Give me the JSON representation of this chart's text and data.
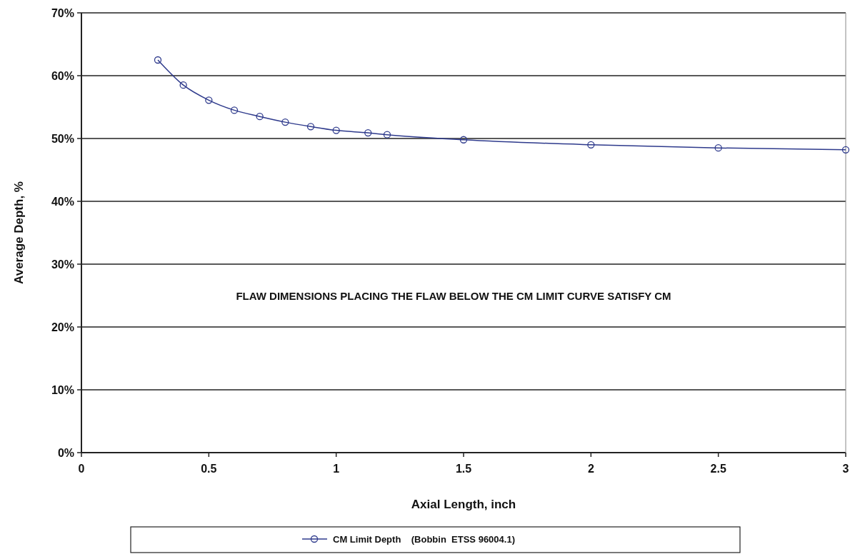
{
  "chart_data": {
    "type": "line",
    "xlabel": "Axial Length, inch",
    "ylabel": "Average Depth, %",
    "x": [
      0.3,
      0.4,
      0.5,
      0.6,
      0.7,
      0.8,
      0.9,
      1.0,
      1.125,
      1.2,
      1.5,
      2.0,
      2.5,
      3.0
    ],
    "series": [
      {
        "name": "CM Limit Depth    (Bobbin  ETSS 96004.1)",
        "color": "#2e3a8c",
        "values": [
          62.5,
          58.5,
          56.1,
          54.5,
          53.5,
          52.6,
          51.9,
          51.3,
          50.9,
          50.6,
          49.8,
          49.0,
          48.5,
          48.2
        ]
      }
    ],
    "xlim": [
      0,
      3
    ],
    "xticks": [
      0,
      0.5,
      1,
      1.5,
      2,
      2.5,
      3
    ],
    "ylim": [
      0,
      70
    ],
    "yticks": [
      {
        "value": 0,
        "label": "0%"
      },
      {
        "value": 10,
        "label": "10%"
      },
      {
        "value": 20,
        "label": "20%"
      },
      {
        "value": 30,
        "label": "30%"
      },
      {
        "value": 40,
        "label": "40%"
      },
      {
        "value": 50,
        "label": "50%"
      },
      {
        "value": 60,
        "label": "60%"
      },
      {
        "value": 70,
        "label": "70%"
      }
    ],
    "annotations": [
      "FLAW DIMENSIONS PLACING THE FLAW BELOW THE CM LIMIT CURVE SATISFY CM"
    ],
    "grid": "y",
    "legend": "bottom",
    "marker": "circle",
    "line_style": "solid"
  }
}
